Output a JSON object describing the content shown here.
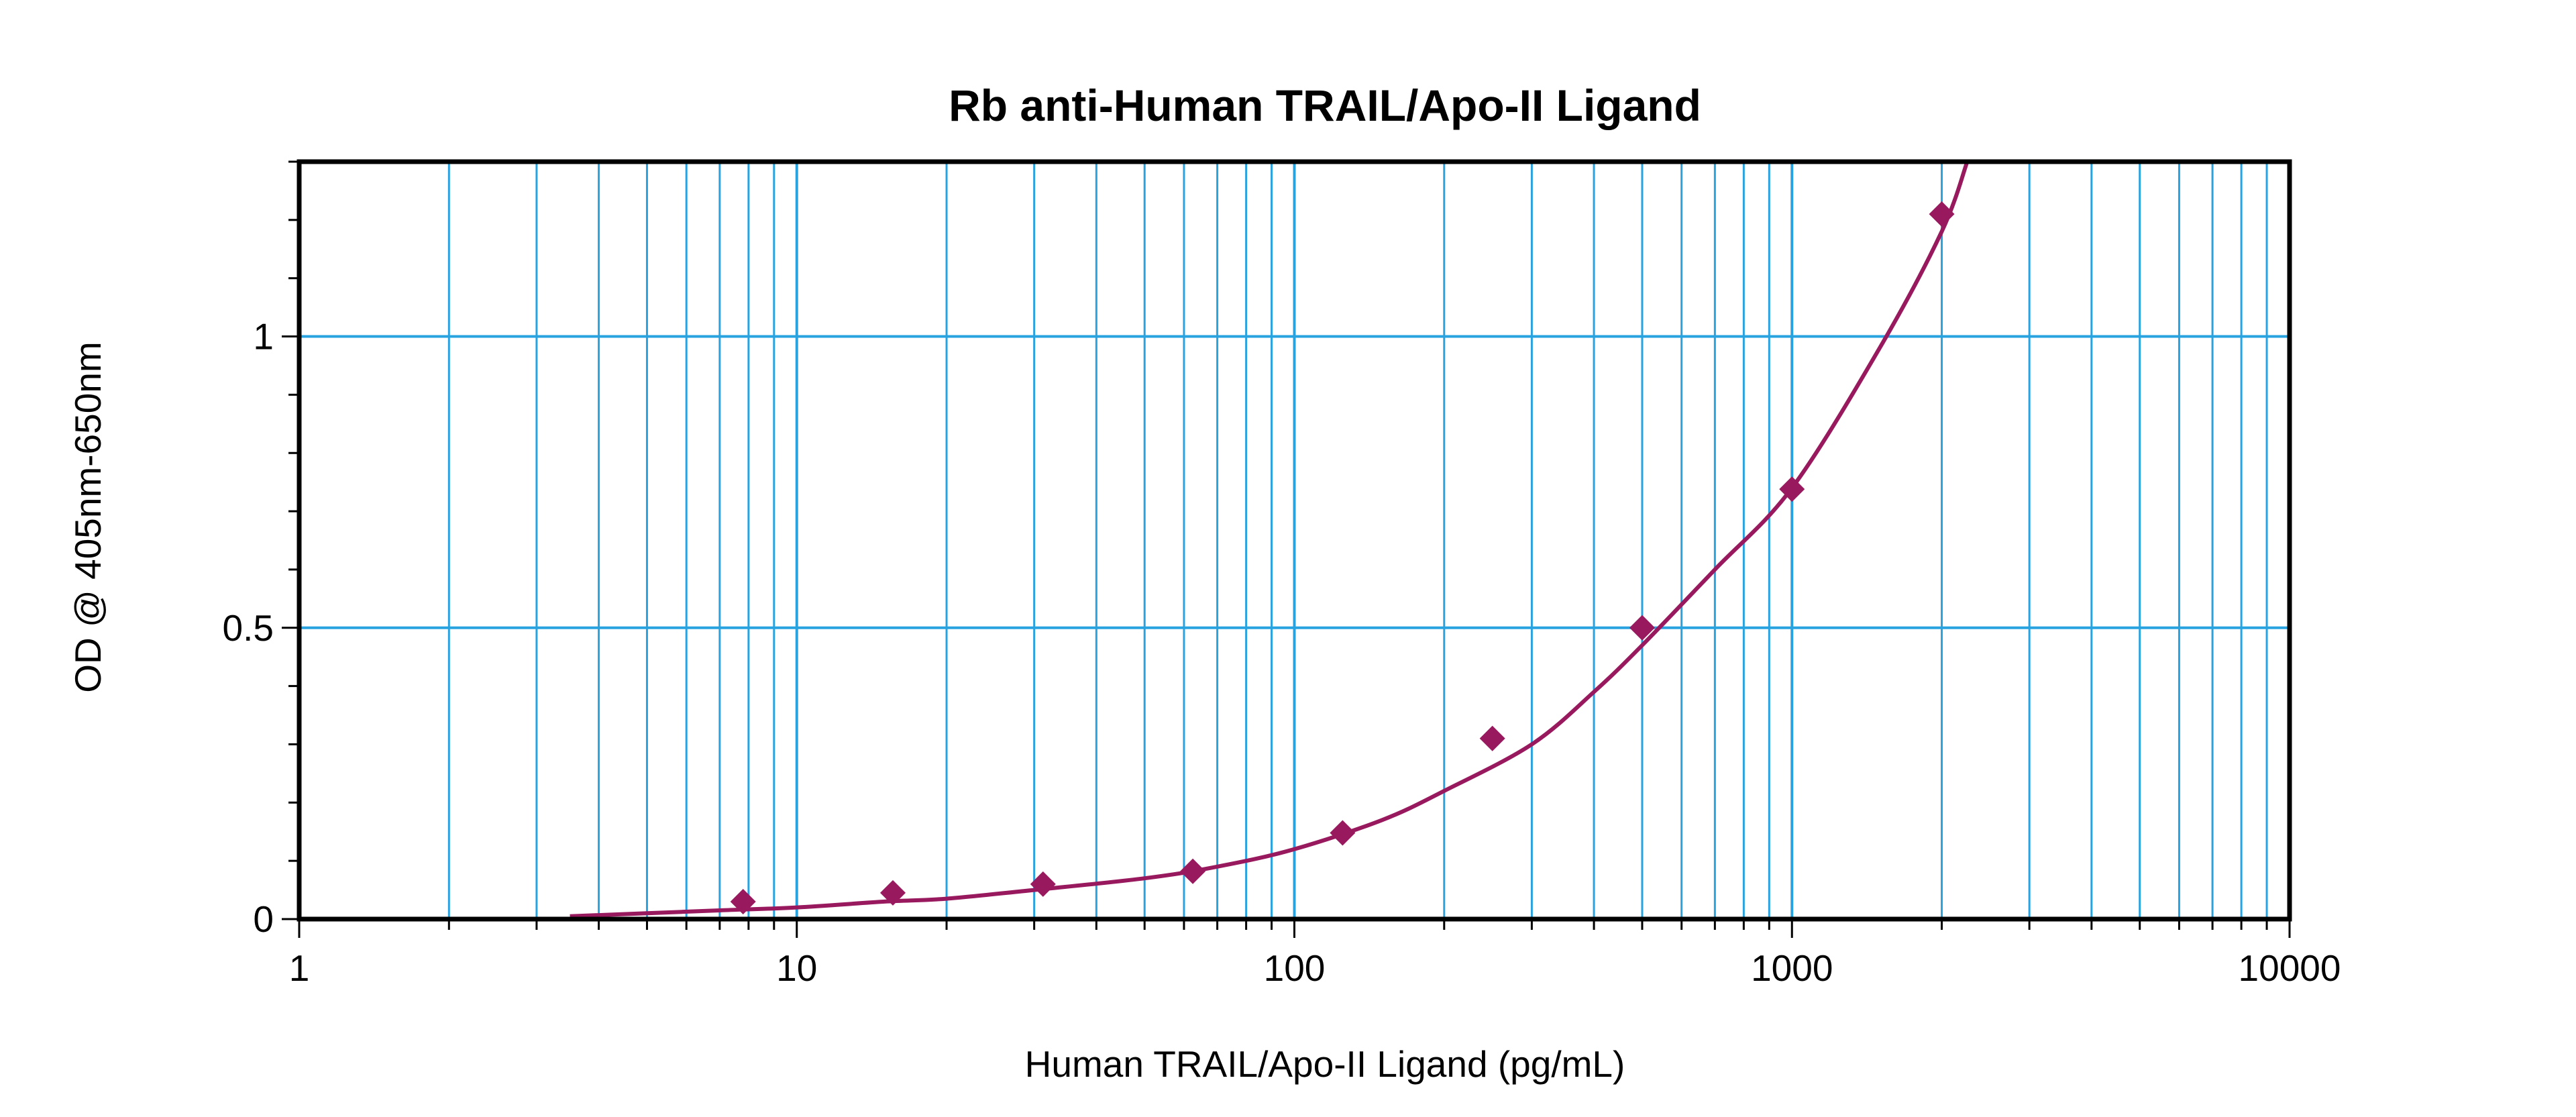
{
  "chart_data": {
    "type": "scatter",
    "title": "Rb anti-Human TRAIL/Apo-II Ligand",
    "xlabel": "Human TRAIL/Apo-II Ligand (pg/mL)",
    "ylabel": "OD @ 405nm-650nm",
    "x_scale": "log",
    "xlim": [
      1,
      10000
    ],
    "ylim": [
      0,
      1.3
    ],
    "x_ticks": [
      1,
      10,
      100,
      1000,
      10000
    ],
    "x_tick_labels": [
      "1",
      "10",
      "100",
      "1000",
      "10000"
    ],
    "y_ticks": [
      0,
      0.5,
      1
    ],
    "y_tick_labels": [
      "0",
      "0.5",
      "1"
    ],
    "grid": true,
    "legend": "none",
    "series": [
      {
        "kind": "points",
        "color": "#99195E",
        "marker": "diamond",
        "x": [
          7.8,
          15.6,
          31.25,
          62.5,
          125,
          250,
          500,
          1000,
          2000
        ],
        "y": [
          0.03,
          0.045,
          0.06,
          0.082,
          0.148,
          0.31,
          0.5,
          0.738,
          1.21
        ]
      },
      {
        "kind": "fit-curve",
        "color": "#99195E",
        "x": [
          3.5,
          5,
          7,
          10,
          15,
          20,
          30,
          50,
          70,
          100,
          150,
          200,
          300,
          400,
          500,
          700,
          1000,
          1500,
          2000,
          2250
        ],
        "y": [
          0.005,
          0.01,
          0.015,
          0.02,
          0.03,
          0.035,
          0.05,
          0.07,
          0.09,
          0.12,
          0.17,
          0.22,
          0.3,
          0.39,
          0.47,
          0.6,
          0.74,
          0.98,
          1.18,
          1.3
        ]
      }
    ],
    "colors": {
      "grid": "#29A3E0",
      "frame": "#000000",
      "data": "#99195E"
    }
  }
}
